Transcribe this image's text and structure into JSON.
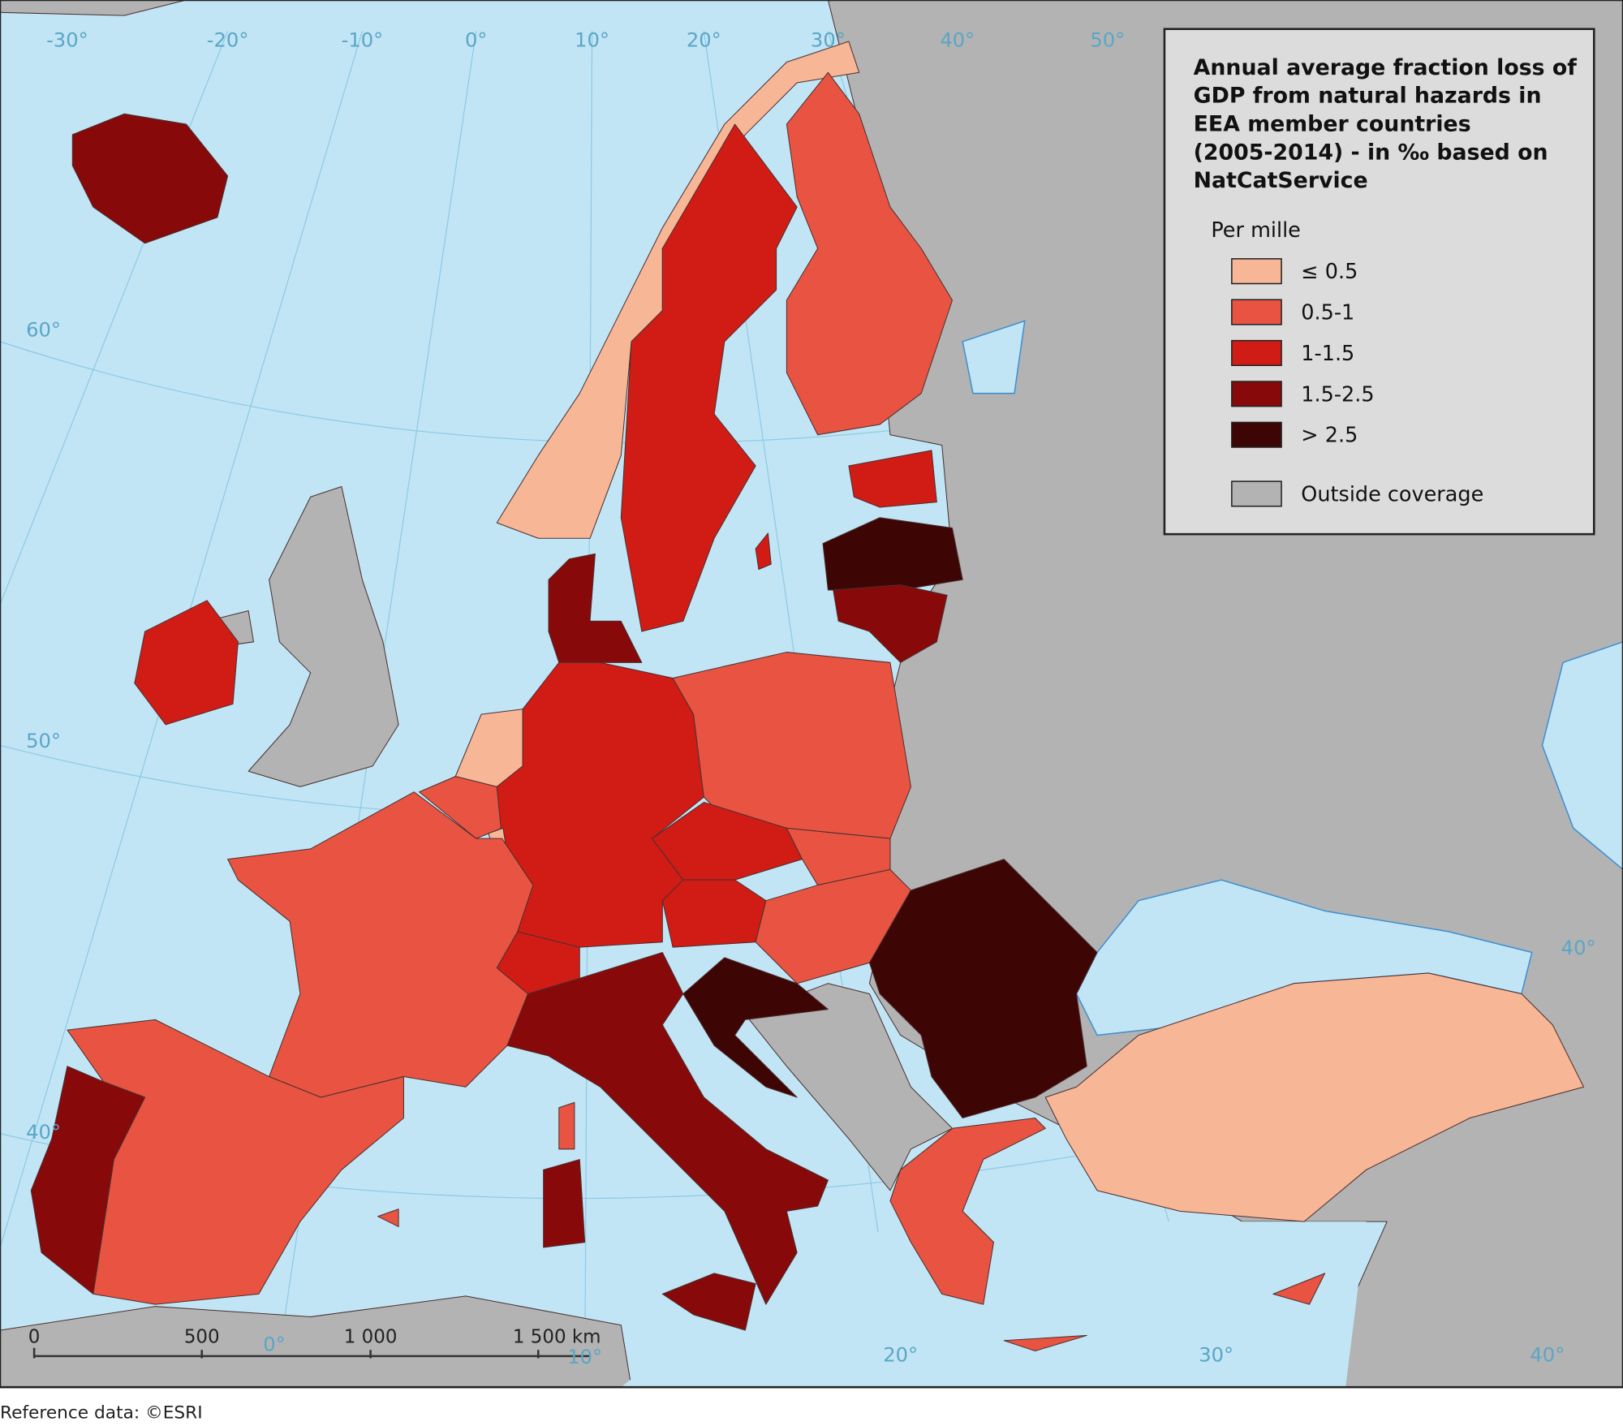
{
  "title_lines": [
    "Annual average fraction loss of",
    "GDP from natural hazards in",
    "EEA member countries",
    "(2005-2014) - in ‰ based on",
    "NatCatService"
  ],
  "legend": {
    "heading": "Per mille",
    "classes": [
      {
        "label": "≤ 0.5",
        "color": "#f7b696"
      },
      {
        "label": "0.5-1",
        "color": "#e85441"
      },
      {
        "label": "1-1.5",
        "color": "#d11c15"
      },
      {
        "label": "1.5-2.5",
        "color": "#870909"
      },
      {
        "label": "> 2.5",
        "color": "#3e0505"
      }
    ],
    "outside": {
      "label": "Outside coverage",
      "color": "#b3b3b3"
    }
  },
  "graticule_labels": [
    "-30°",
    "-20°",
    "-10°",
    "0°",
    "10°",
    "20°",
    "30°",
    "40°",
    "50°",
    "60°",
    "50°",
    "40°",
    "0°",
    "10°",
    "20°",
    "30°",
    "40°",
    "40°"
  ],
  "scale_bar": [
    "0",
    "500",
    "1 000",
    "1 500 km"
  ],
  "footer": "Reference data: ©ESRI"
}
